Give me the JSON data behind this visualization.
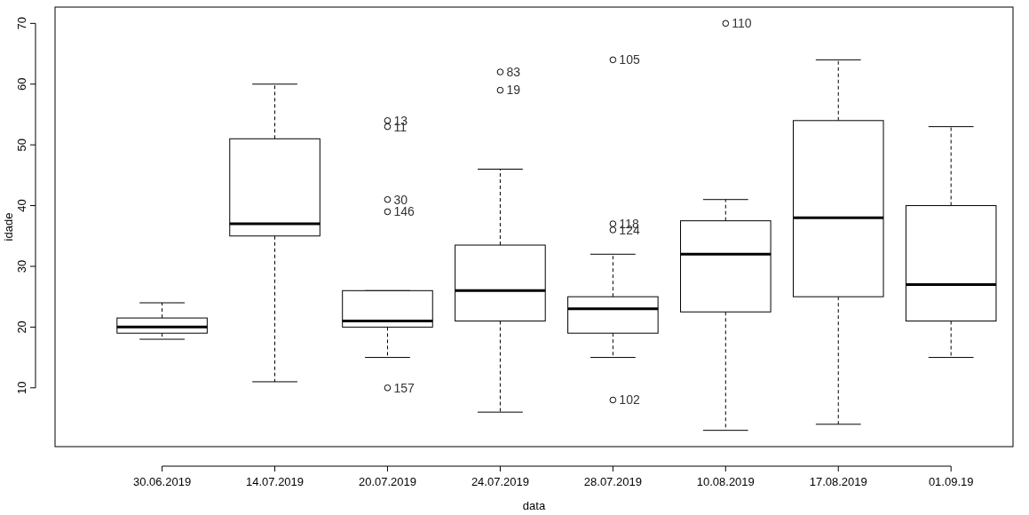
{
  "chart_data": {
    "type": "box",
    "xlabel": "data",
    "ylabel": "idade",
    "categories": [
      "30.06.2019",
      "14.07.2019",
      "20.07.2019",
      "24.07.2019",
      "28.07.2019",
      "10.08.2019",
      "17.08.2019",
      "01.09.19"
    ],
    "boxes": [
      {
        "low": 18,
        "q1": 19,
        "median": 20,
        "q3": 21.5,
        "high": 24
      },
      {
        "low": 11,
        "q1": 35,
        "median": 37,
        "q3": 51,
        "high": 60
      },
      {
        "low": 15,
        "q1": 20,
        "median": 21,
        "q3": 26,
        "high": 26,
        "outliers": [
          54,
          53,
          41,
          39,
          10
        ]
      },
      {
        "low": 6,
        "q1": 21,
        "median": 26,
        "q3": 33.5,
        "high": 46,
        "outliers": [
          62,
          59
        ]
      },
      {
        "low": 15,
        "q1": 19,
        "median": 23,
        "q3": 25,
        "high": 32,
        "outliers": [
          64,
          37,
          36,
          8
        ]
      },
      {
        "low": 3,
        "q1": 22.5,
        "median": 32,
        "q3": 37.5,
        "high": 41,
        "outliers": [
          70
        ]
      },
      {
        "low": 4,
        "q1": 25,
        "median": 38,
        "q3": 54,
        "high": 64
      },
      {
        "low": 15,
        "q1": 21,
        "median": 27,
        "q3": 40,
        "high": 53
      }
    ],
    "ylim": [
      0.32,
      72.68
    ],
    "yticks": [
      10,
      20,
      30,
      40,
      50,
      60,
      70
    ],
    "grid": false,
    "annotations": [
      "13",
      "11",
      "30",
      "146",
      "157",
      "83",
      "19",
      "105",
      "118",
      "124",
      "102",
      "110"
    ]
  }
}
